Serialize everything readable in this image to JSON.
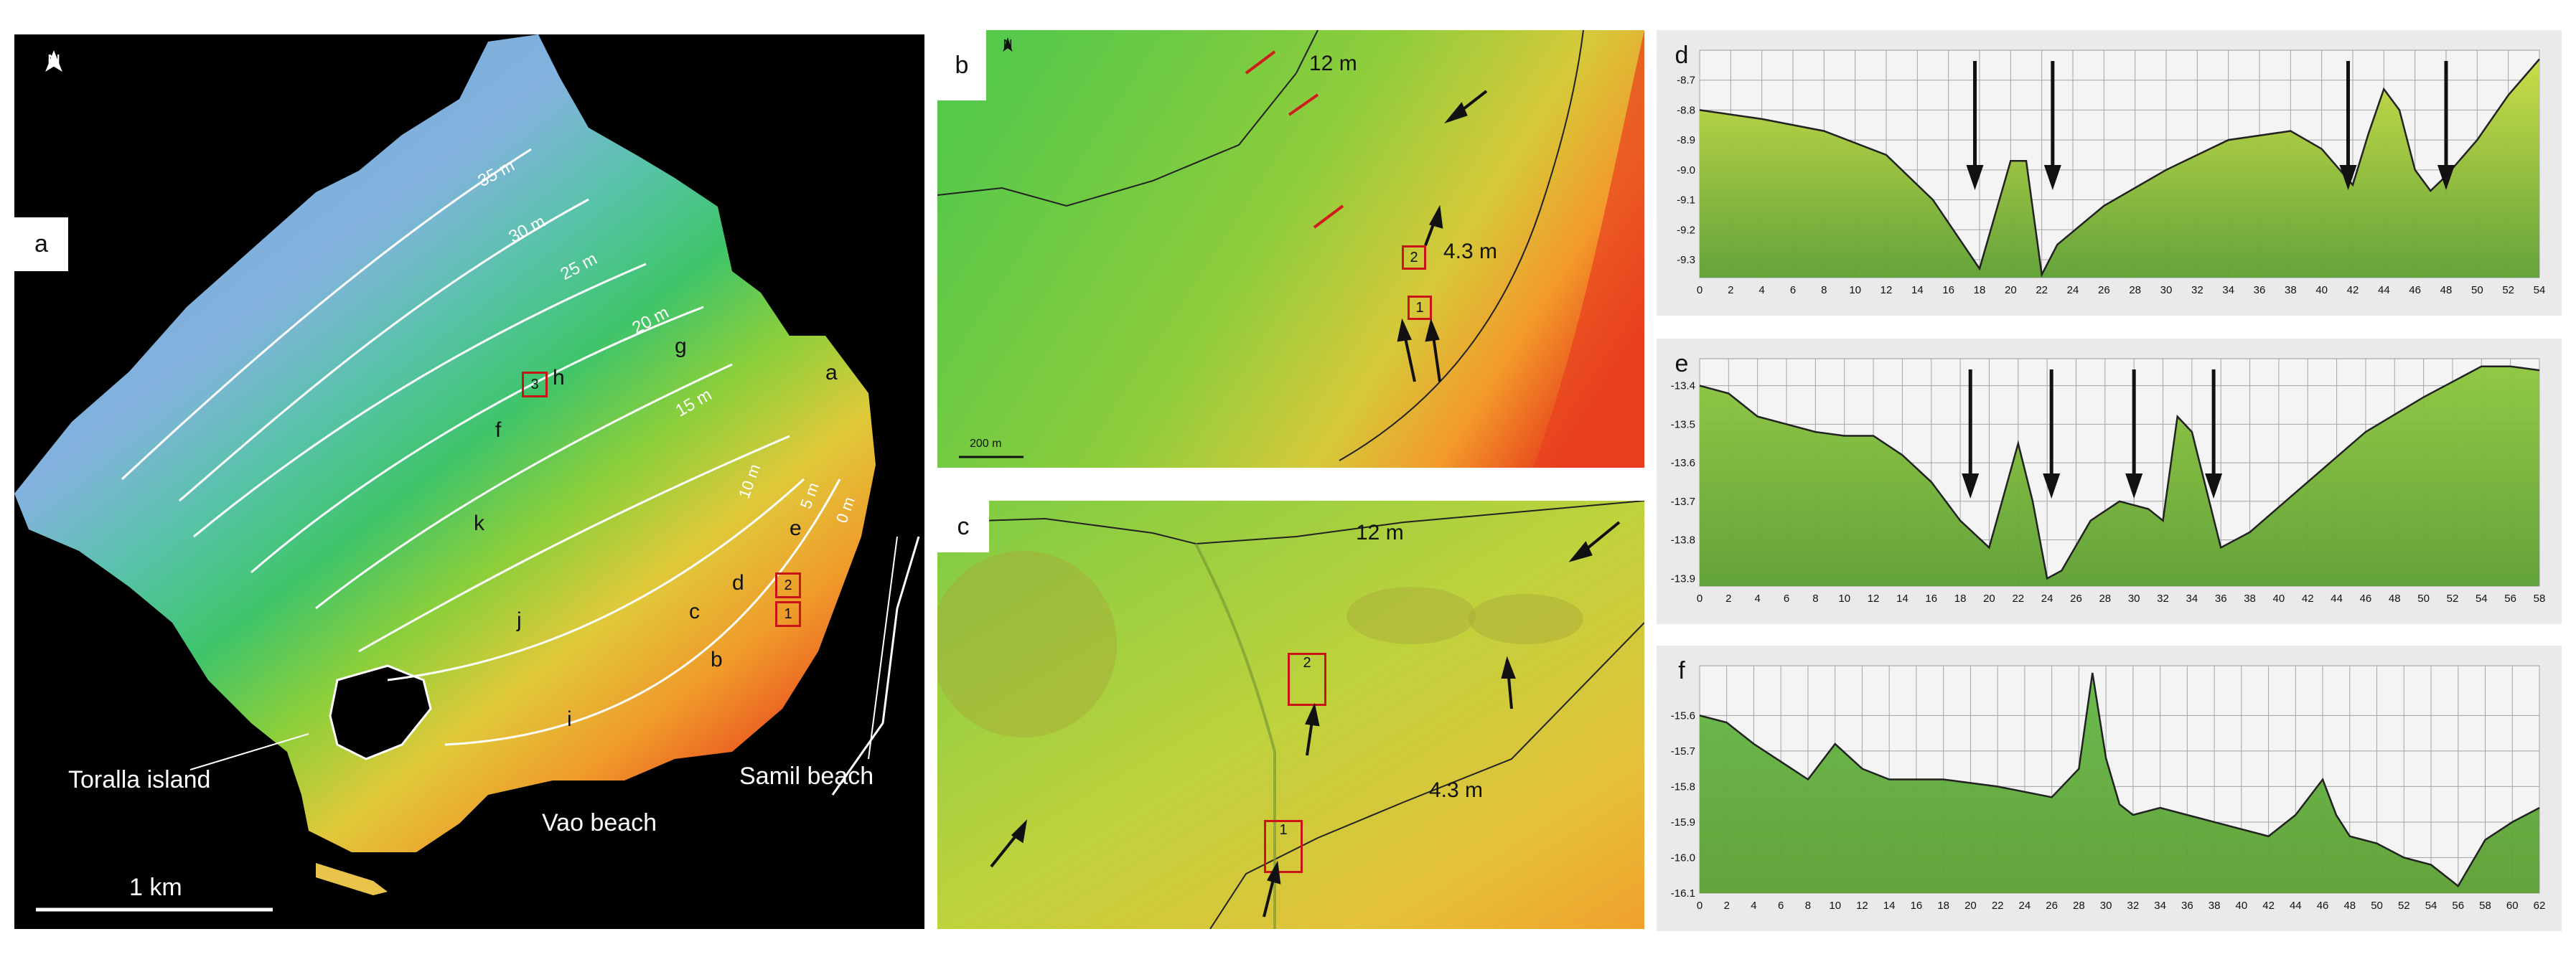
{
  "panel_a": {
    "letter": "a",
    "north": "N",
    "contours": [
      "35 m",
      "30 m",
      "25 m",
      "20 m",
      "15 m",
      "10 m",
      "5 m",
      "0 m"
    ],
    "regions": [
      "a",
      "b",
      "c",
      "d",
      "e",
      "f",
      "g",
      "h",
      "i",
      "j",
      "k"
    ],
    "boxes": [
      "3",
      "2",
      "1"
    ],
    "places": {
      "island": "Toralla island",
      "vao": "Vao beach",
      "samil": "Samil beach"
    },
    "scalebar": "1 km"
  },
  "panel_b": {
    "letter": "b",
    "north": "N",
    "depth_top": "12 m",
    "depth_bottom": "4.3 m",
    "boxes": [
      "2",
      "1"
    ],
    "scalebar": "200 m"
  },
  "panel_c": {
    "letter": "c",
    "depth_top": "12 m",
    "depth_bottom": "4.3 m",
    "boxes": [
      "2",
      "1"
    ]
  },
  "chart_data": [
    {
      "type": "area",
      "label": "d",
      "x": [
        0,
        4,
        8,
        12,
        15,
        18,
        20,
        21,
        22,
        23,
        26,
        30,
        34,
        38,
        40,
        42,
        43,
        44,
        45,
        46,
        47,
        48,
        50,
        52,
        54
      ],
      "y": [
        -8.8,
        -8.83,
        -8.87,
        -8.95,
        -9.1,
        -9.33,
        -8.97,
        -8.97,
        -9.35,
        -9.25,
        -9.12,
        -9.0,
        -8.9,
        -8.87,
        -8.93,
        -9.05,
        -8.88,
        -8.73,
        -8.8,
        -9.0,
        -9.07,
        -9.02,
        -8.9,
        -8.75,
        -8.63
      ],
      "xticks": [
        "0",
        "2",
        "4",
        "6",
        "8",
        "10",
        "12",
        "14",
        "16",
        "18",
        "20",
        "22",
        "24",
        "26",
        "28",
        "30",
        "32",
        "34",
        "36",
        "38",
        "40",
        "42",
        "44",
        "46",
        "48",
        "50",
        "52",
        "54"
      ],
      "yticks": [
        "-8.7",
        "-8.8",
        "-8.9",
        "-9.0",
        "-9.1",
        "-9.2",
        "-9.3"
      ],
      "xlim": [
        0,
        54
      ],
      "ylim": [
        -9.36,
        -8.6
      ],
      "arrows_x": [
        17.7,
        22.7,
        41.7,
        48.0
      ]
    },
    {
      "type": "area",
      "label": "e",
      "x": [
        0,
        2,
        4,
        6,
        8,
        10,
        12,
        14,
        16,
        18,
        20,
        22,
        23,
        24,
        25,
        27,
        29,
        31,
        32,
        33,
        34,
        36,
        38,
        42,
        46,
        50,
        54,
        56,
        58
      ],
      "y": [
        -13.4,
        -13.42,
        -13.48,
        -13.5,
        -13.52,
        -13.53,
        -13.53,
        -13.58,
        -13.65,
        -13.75,
        -13.82,
        -13.55,
        -13.7,
        -13.9,
        -13.88,
        -13.75,
        -13.7,
        -13.72,
        -13.75,
        -13.48,
        -13.52,
        -13.82,
        -13.78,
        -13.65,
        -13.52,
        -13.43,
        -13.35,
        -13.35,
        -13.36
      ],
      "xticks": [
        "0",
        "2",
        "4",
        "6",
        "8",
        "10",
        "12",
        "14",
        "16",
        "18",
        "20",
        "22",
        "24",
        "26",
        "28",
        "30",
        "32",
        "34",
        "36",
        "38",
        "40",
        "42",
        "44",
        "46",
        "48",
        "50",
        "52",
        "54",
        "56",
        "58"
      ],
      "yticks": [
        "-13.4",
        "-13.5",
        "-13.6",
        "-13.7",
        "-13.8",
        "-13.9"
      ],
      "xlim": [
        0,
        58
      ],
      "ylim": [
        -13.92,
        -13.33
      ],
      "arrows_x": [
        18.7,
        24.3,
        30.0,
        35.5
      ]
    },
    {
      "type": "area",
      "label": "f",
      "x": [
        0,
        2,
        4,
        6,
        8,
        10,
        12,
        14,
        18,
        22,
        26,
        28,
        29,
        30,
        31,
        32,
        34,
        38,
        42,
        44,
        46,
        47,
        48,
        50,
        52,
        54,
        56,
        58,
        60,
        62
      ],
      "y": [
        -15.6,
        -15.62,
        -15.68,
        -15.73,
        -15.78,
        -15.68,
        -15.75,
        -15.78,
        -15.78,
        -15.8,
        -15.83,
        -15.75,
        -15.48,
        -15.72,
        -15.85,
        -15.88,
        -15.86,
        -15.9,
        -15.94,
        -15.88,
        -15.78,
        -15.88,
        -15.94,
        -15.96,
        -16.0,
        -16.02,
        -16.08,
        -15.95,
        -15.9,
        -15.86
      ],
      "xticks": [
        "0",
        "2",
        "4",
        "6",
        "8",
        "10",
        "12",
        "14",
        "16",
        "18",
        "20",
        "22",
        "24",
        "26",
        "28",
        "30",
        "32",
        "34",
        "36",
        "38",
        "40",
        "42",
        "44",
        "46",
        "48",
        "50",
        "52",
        "54",
        "56",
        "58",
        "60",
        "62"
      ],
      "yticks": [
        "-15.6",
        "-15.7",
        "-15.8",
        "-15.9",
        "-16.0",
        "-16.1"
      ],
      "xlim": [
        0,
        62
      ],
      "ylim": [
        -16.1,
        -15.46
      ],
      "arrows_x": []
    }
  ]
}
